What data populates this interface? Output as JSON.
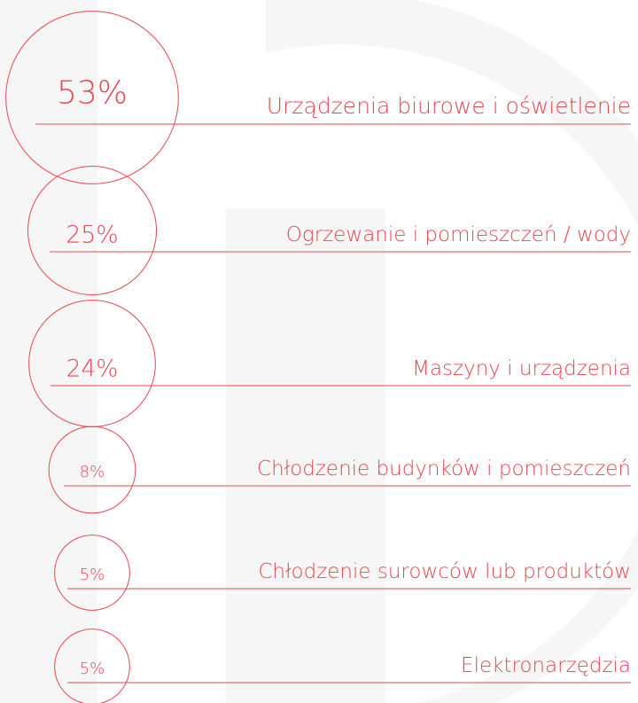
{
  "chart_data": {
    "type": "bubble",
    "categories": [
      "Urządzenia biurowe i oświetlenie",
      "Ogrzewanie i pomieszczeń / wody",
      "Maszyny i urządzenia",
      "Chłodzenie budynków i pomieszczeń",
      "Chłodzenie surowców lub produktów",
      "Elektronarzędzia"
    ],
    "values": [
      53,
      25,
      24,
      8,
      5,
      5
    ],
    "value_labels": [
      "53%",
      "25%",
      "24%",
      "8%",
      "5%",
      "5%"
    ],
    "color": "#e8474f"
  }
}
